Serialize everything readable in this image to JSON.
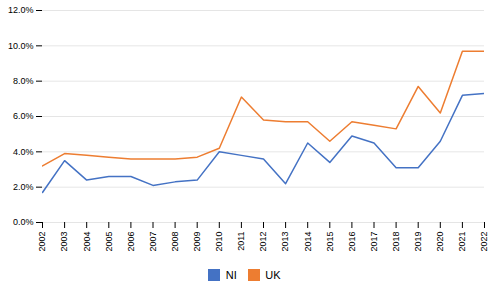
{
  "chart_data": {
    "type": "line",
    "x": [
      2002,
      2003,
      2004,
      2005,
      2006,
      2007,
      2008,
      2009,
      2010,
      2011,
      2012,
      2013,
      2014,
      2015,
      2016,
      2017,
      2018,
      2019,
      2020,
      2021,
      2022
    ],
    "series": [
      {
        "name": "NI",
        "color": "#4472C4",
        "values": [
          0.017,
          0.035,
          0.024,
          0.026,
          0.026,
          0.021,
          0.023,
          0.024,
          0.04,
          0.038,
          0.036,
          0.022,
          0.045,
          0.034,
          0.049,
          0.045,
          0.031,
          0.031,
          0.046,
          0.072,
          0.073
        ]
      },
      {
        "name": "UK",
        "color": "#ED7D31",
        "values": [
          0.032,
          0.039,
          0.038,
          0.037,
          0.036,
          0.036,
          0.036,
          0.037,
          0.042,
          0.071,
          0.058,
          0.057,
          0.057,
          0.046,
          0.057,
          0.055,
          0.053,
          0.077,
          0.062,
          0.097,
          0.097
        ]
      }
    ],
    "xlim": [
      2002,
      2022
    ],
    "xticks": [
      2002,
      2003,
      2004,
      2005,
      2006,
      2007,
      2008,
      2009,
      2010,
      2011,
      2012,
      2013,
      2014,
      2015,
      2016,
      2017,
      2018,
      2019,
      2020,
      2021,
      2022
    ],
    "ylim": [
      0.0,
      0.12
    ],
    "yticks": [
      {
        "value": 0.0,
        "label": "0.0%"
      },
      {
        "value": 0.02,
        "label": "2.0%"
      },
      {
        "value": 0.04,
        "label": "4.0%"
      },
      {
        "value": 0.06,
        "label": "6.0%"
      },
      {
        "value": 0.08,
        "label": "8.0%"
      },
      {
        "value": 0.1,
        "label": "10.0%"
      },
      {
        "value": 0.12,
        "label": "12.0%"
      }
    ],
    "grid": true,
    "legend": "bottom"
  }
}
